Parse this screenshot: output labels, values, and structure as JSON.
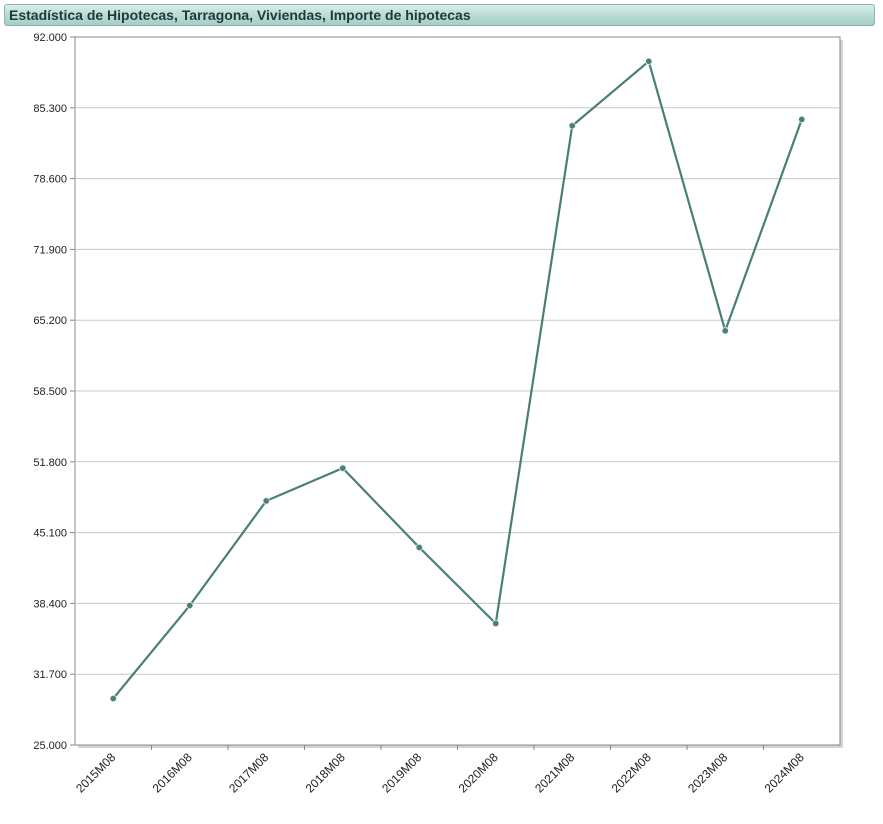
{
  "header": {
    "title": "Estadística de Hipotecas, Tarragona, Viviendas, Importe de hipotecas"
  },
  "colors": {
    "line": "#4a7f78",
    "marker": "#4a7f78",
    "grid": "#c8c8c8",
    "axis": "#888888",
    "title_bar": "#b9dcd5"
  },
  "chart_data": {
    "type": "line",
    "title": "Estadística de Hipotecas, Tarragona, Viviendas, Importe de hipotecas",
    "xlabel": "",
    "ylabel": "",
    "categories": [
      "2015M08",
      "2016M08",
      "2017M08",
      "2018M08",
      "2019M08",
      "2020M08",
      "2021M08",
      "2022M08",
      "2023M08",
      "2024M08"
    ],
    "series": [
      {
        "values": [
          29.4,
          38.2,
          48.1,
          51.2,
          43.7,
          36.5,
          83.6,
          89.7,
          64.2,
          84.2
        ]
      }
    ],
    "ylim": [
      25.0,
      92.0
    ],
    "yticks": [
      "92.000",
      "85.300",
      "78.600",
      "71.900",
      "65.200",
      "58.500",
      "51.800",
      "45.100",
      "38.400",
      "31.700",
      "25.000"
    ],
    "grid": true,
    "legend": "none"
  }
}
